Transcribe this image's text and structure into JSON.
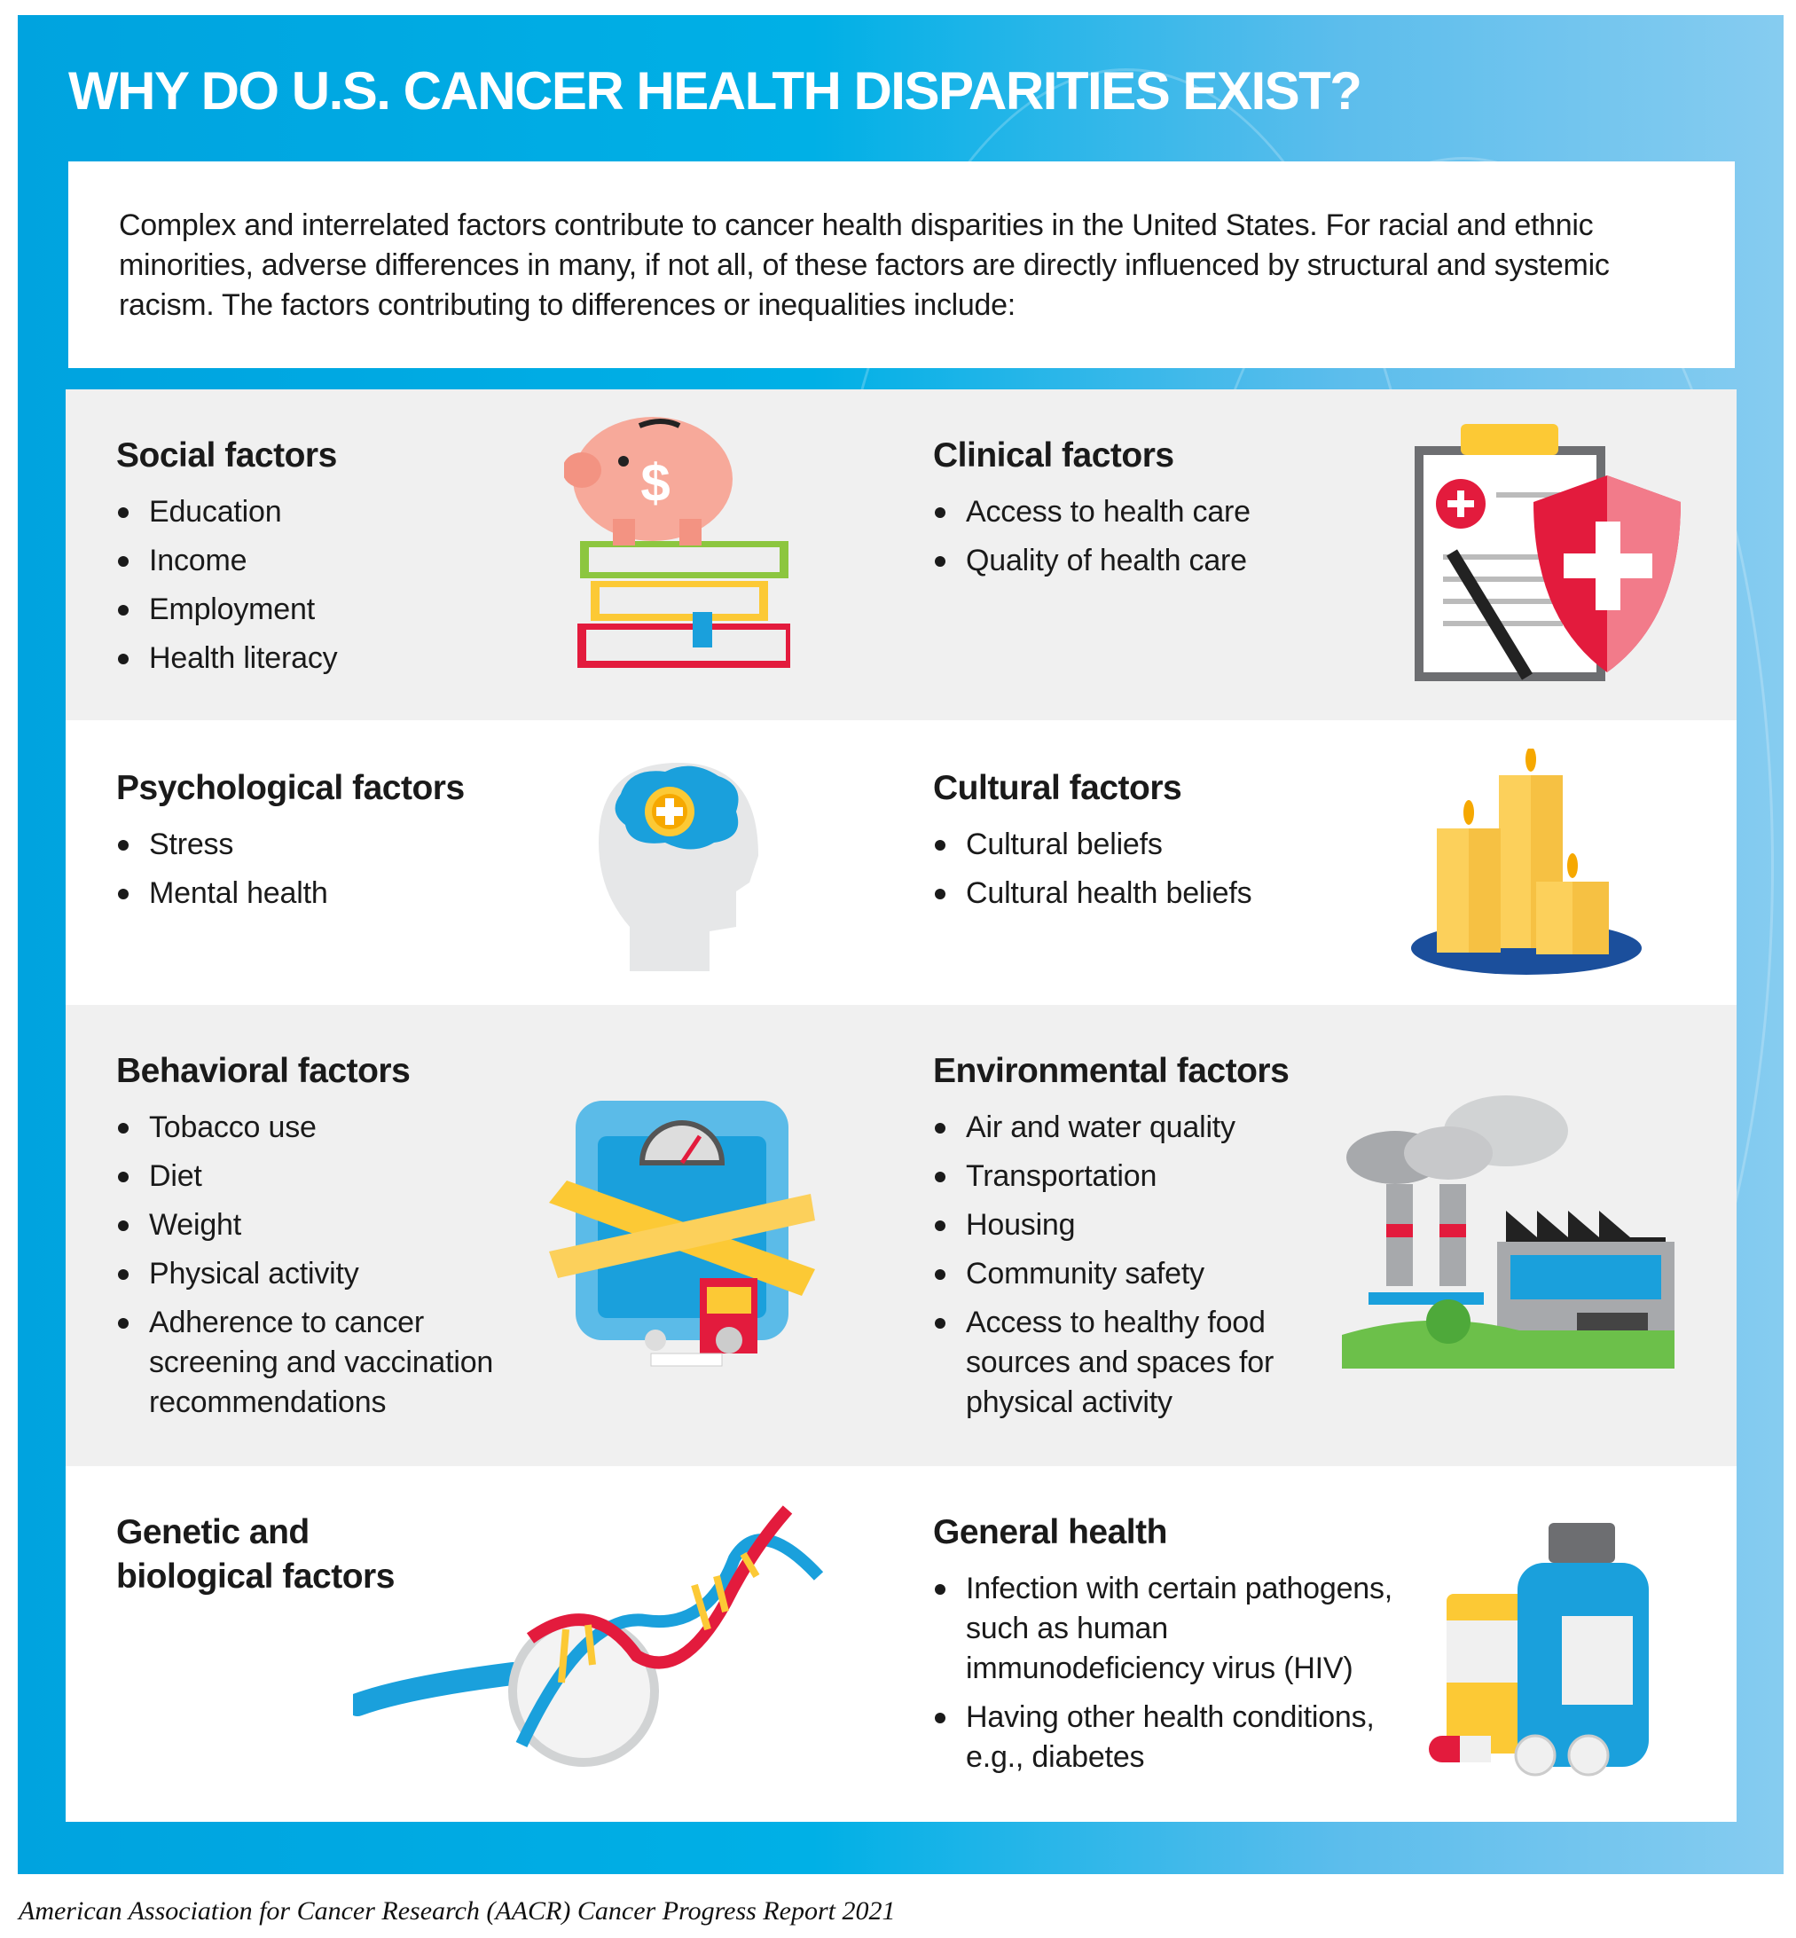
{
  "title": "WHY DO U.S. CANCER HEALTH DISPARITIES EXIST?",
  "intro": "Complex and interrelated factors contribute to cancer health disparities in the United States. For racial and ethnic minorities, adverse differences in many, if not all, of these factors are directly influenced by structural and systemic racism. The factors contributing to differences or inequalities include:",
  "sections": {
    "social": {
      "heading": "Social factors",
      "items": [
        "Education",
        "Income",
        "Employment",
        "Health literacy"
      ],
      "icon": "piggy-bank-books-icon"
    },
    "clinical": {
      "heading": "Clinical factors",
      "items": [
        "Access to health care",
        "Quality of health care"
      ],
      "icon": "clipboard-shield-icon"
    },
    "psychological": {
      "heading": "Psychological factors",
      "items": [
        "Stress",
        "Mental health"
      ],
      "icon": "head-brain-icon"
    },
    "cultural": {
      "heading": "Cultural factors",
      "items": [
        "Cultural beliefs",
        "Cultural health beliefs"
      ],
      "icon": "candles-icon"
    },
    "behavioral": {
      "heading": "Behavioral factors",
      "items": [
        "Tobacco use",
        "Diet",
        "Weight",
        "Physical activity",
        "Adherence to cancer screening and vaccination recommendations"
      ],
      "icon": "scale-tape-cigarettes-icon"
    },
    "environmental": {
      "heading": "Environmental factors",
      "items": [
        "Air and water quality",
        "Transportation",
        "Housing",
        "Community safety",
        "Access to healthy food sources and spaces for physical activity"
      ],
      "icon": "factory-icon"
    },
    "genetic": {
      "heading_line1": "Genetic and",
      "heading_line2": "biological factors",
      "icon": "dna-magnifier-icon"
    },
    "general": {
      "heading": "General health",
      "items": [
        "Infection with certain pathogens, such as human immunodeficiency virus (HIV)",
        "Having other health conditions, e.g., diabetes"
      ],
      "icon": "medicine-bottles-icon"
    }
  },
  "footer": "American Association for Cancer Research (AACR) Cancer Progress Report 2021",
  "colors": {
    "frame_blue": "#00a3df",
    "light_blue": "#86ccf0",
    "row_gray": "#f0f0f0",
    "red": "#e31b3d",
    "yellow": "#fcd05b"
  }
}
